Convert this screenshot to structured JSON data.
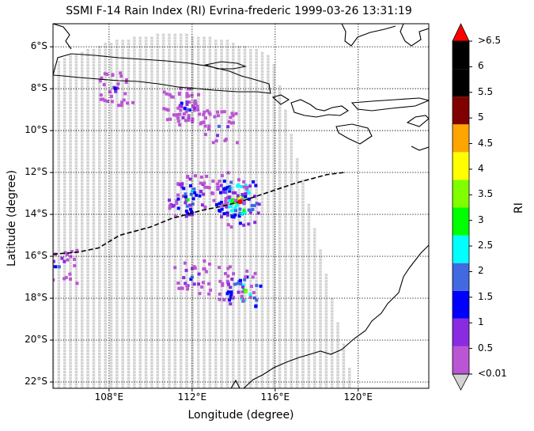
{
  "title": "SSMI F-14 Rain Index (RI) Evrina-frederic 1999-03-26 13:31:19",
  "xlabel": "Longitude (degree)",
  "ylabel": "Latitude (degree)",
  "colorbar": {
    "label": "RI",
    "tick_labels": [
      "<0.01",
      "0.5",
      "1",
      "1.5",
      "2",
      "2.5",
      "3",
      "3.5",
      "4",
      "4.5",
      "5",
      "5.5",
      "6",
      ">6.5"
    ],
    "colors": [
      "#d3d3d3",
      "#ba55d3",
      "#8a2be2",
      "#0000ff",
      "#4169e1",
      "#00ffff",
      "#00ff00",
      "#7fff00",
      "#ffff00",
      "#ffa500",
      "#800000",
      "#000000",
      "#000000",
      "#ff0000"
    ]
  },
  "chart_data": {
    "type": "heatmap",
    "title": "SSMI F-14 Rain Index (RI) Evrina-frederic 1999-03-26 13:31:19",
    "xlabel": "Longitude (degree)",
    "ylabel": "Latitude (degree)",
    "xlim": [
      105.3,
      123.4
    ],
    "ylim": [
      -22.3,
      -4.9
    ],
    "xticks": [
      108,
      112,
      116,
      120
    ],
    "xtick_labels": [
      "108°E",
      "112°E",
      "116°E",
      "120°E"
    ],
    "yticks": [
      -6,
      -8,
      -10,
      -12,
      -14,
      -16,
      -18,
      -20,
      -22
    ],
    "ytick_labels": [
      "6°S",
      "8°S",
      "10°S",
      "12°S",
      "14°S",
      "16°S",
      "18°S",
      "20°S",
      "22°S"
    ],
    "grid": true,
    "storm_track": [
      [
        105.3,
        -15.9
      ],
      [
        106.5,
        -15.8
      ],
      [
        107.5,
        -15.6
      ],
      [
        108.5,
        -15.0
      ],
      [
        110.0,
        -14.6
      ],
      [
        111.0,
        -14.2
      ],
      [
        112.5,
        -13.8
      ],
      [
        113.5,
        -13.6
      ],
      [
        114.3,
        -13.4
      ],
      [
        115.5,
        -13.0
      ],
      [
        117.0,
        -12.5
      ],
      [
        118.5,
        -12.1
      ],
      [
        119.3,
        -12.0
      ]
    ],
    "storm_center": [
      114.3,
      -13.4
    ],
    "rain_cells": [
      {
        "lon": 114.0,
        "lat": -13.4,
        "ri": 3.0
      },
      {
        "lon": 114.3,
        "lat": -13.2,
        "ri": 3.5
      },
      {
        "lon": 114.5,
        "lat": -13.8,
        "ri": 2.5
      },
      {
        "lon": 113.8,
        "lat": -12.8,
        "ri": 1.5
      },
      {
        "lon": 112.0,
        "lat": -12.9,
        "ri": 2.0
      },
      {
        "lon": 111.8,
        "lat": -13.3,
        "ri": 2.5
      },
      {
        "lon": 114.6,
        "lat": -17.7,
        "ri": 3.0
      },
      {
        "lon": 114.2,
        "lat": -17.3,
        "ri": 1.5
      },
      {
        "lon": 112.0,
        "lat": -17.0,
        "ri": 1.5
      },
      {
        "lon": 105.6,
        "lat": -16.5,
        "ri": 1.5
      },
      {
        "lon": 108.3,
        "lat": -8.0,
        "ri": 1.0
      },
      {
        "lon": 111.5,
        "lat": -8.7,
        "ri": 1.0
      },
      {
        "lon": 111.8,
        "lat": -9.0,
        "ri": 1.5
      },
      {
        "lon": 113.3,
        "lat": -9.8,
        "ri": 1.5
      }
    ]
  }
}
